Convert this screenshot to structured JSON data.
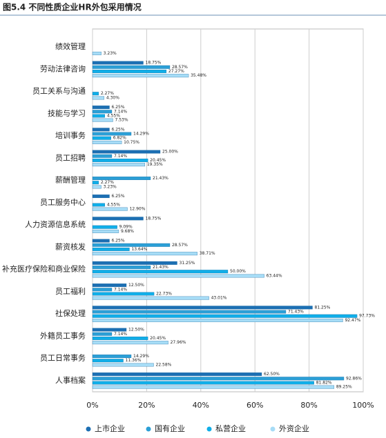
{
  "chart_data": {
    "type": "hbar",
    "title": "图5.4 不同性质企业HR外包采用情况",
    "categories": [
      "绩效管理",
      "劳动法律咨询",
      "员工关系与沟通",
      "技能与学习",
      "培训事务",
      "员工招聘",
      "薪酬管理",
      "员工服务中心",
      "人力资源信息系统",
      "薪资核发",
      "补充医疗保险和商业保险",
      "员工福利",
      "社保处理",
      "外籍员工事务",
      "员工日常事务",
      "人事档案"
    ],
    "series": [
      {
        "name": "上市企业",
        "color": "#1c6fb3",
        "values": [
          null,
          18.75,
          null,
          6.25,
          6.25,
          25.0,
          null,
          6.25,
          18.75,
          6.25,
          31.25,
          12.5,
          81.25,
          12.5,
          null,
          62.5
        ],
        "value_labels": [
          null,
          "18.75%",
          null,
          "6.25%",
          "6.25%",
          "25.00%",
          null,
          "6.25%",
          "18.75%",
          "6.25%",
          "31.25%",
          "12.50%",
          "81.25%",
          "12.50%",
          null,
          "62.50%"
        ]
      },
      {
        "name": "国有企业",
        "color": "#2b9fd6",
        "values": [
          null,
          28.57,
          null,
          7.14,
          14.29,
          7.14,
          21.43,
          null,
          null,
          28.57,
          21.43,
          7.14,
          71.43,
          7.14,
          14.29,
          92.86
        ],
        "value_labels": [
          null,
          "28.57%",
          null,
          "7.14%",
          "14.29%",
          "7.14%",
          "21.43%",
          null,
          null,
          "28.57%",
          "21.43%",
          "7.14%",
          "71.43%",
          "7.14%",
          "14.29%",
          "92.86%"
        ]
      },
      {
        "name": "私营企业",
        "color": "#10aee8",
        "values": [
          null,
          27.27,
          2.27,
          4.55,
          6.82,
          20.45,
          2.27,
          4.55,
          9.09,
          13.64,
          50.0,
          22.73,
          97.73,
          20.45,
          11.36,
          81.82
        ],
        "value_labels": [
          null,
          "27.27%",
          "2.27%",
          "4.55%",
          "6.82%",
          "20.45%",
          "2.27%",
          "4.55%",
          "9.09%",
          "13.64%",
          "50.00%",
          "22.73%",
          "97.73%",
          "20.45%",
          "11.36%",
          "81.82%"
        ]
      },
      {
        "name": "外资企业",
        "color": "#a6dcf6",
        "values": [
          3.23,
          35.48,
          4.3,
          7.53,
          10.75,
          19.35,
          3.23,
          12.9,
          9.68,
          38.71,
          63.44,
          43.01,
          92.47,
          27.96,
          22.58,
          89.25
        ],
        "value_labels": [
          "3.23%",
          "35.48%",
          "4.30%",
          "7.53%",
          "10.75%",
          "19.35%",
          "3.23%",
          "12.90%",
          "9.68%",
          "38.71%",
          "63.44%",
          "43.01%",
          "92.47%",
          "27.96%",
          "22.58%",
          "89.25%"
        ]
      }
    ],
    "xlim": [
      0,
      100
    ],
    "xticks": [
      {
        "value": 0,
        "label": "0%"
      },
      {
        "value": 20,
        "label": "20%"
      },
      {
        "value": 40,
        "label": "40%"
      },
      {
        "value": 60,
        "label": "60%"
      },
      {
        "value": 80,
        "label": "80%"
      },
      {
        "value": 100,
        "label": "100%"
      }
    ],
    "grid": true
  }
}
